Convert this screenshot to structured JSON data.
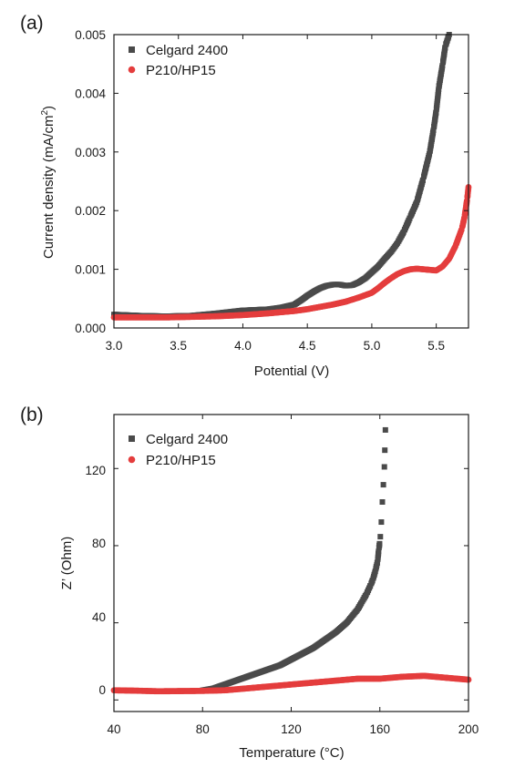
{
  "chart_data": [
    {
      "panel_label": "(a)",
      "type": "scatter",
      "xlabel": "Potential (V)",
      "ylabel": "Current density (mA/cm",
      "ylabel_sup": "2",
      "ylabel_end": ")",
      "xlim": [
        3.0,
        5.75
      ],
      "ylim": [
        0,
        0.005
      ],
      "xticks": [
        3.0,
        3.5,
        4.0,
        4.5,
        5.0,
        5.5
      ],
      "xtick_labels": [
        "3.0",
        "3.5",
        "4.0",
        "4.5",
        "5.0",
        "5.5"
      ],
      "yticks": [
        0,
        0.001,
        0.002,
        0.003,
        0.004,
        0.005
      ],
      "ytick_labels": [
        "0.000",
        "0.001",
        "0.002",
        "0.003",
        "0.004",
        "0.005"
      ],
      "grid": false,
      "legend_position": "top-left",
      "series": [
        {
          "name": "Celgard 2400",
          "color": "#4a4a4a",
          "marker": "square",
          "x": [
            3.0,
            3.2,
            3.4,
            3.6,
            3.8,
            4.0,
            4.2,
            4.3,
            4.4,
            4.45,
            4.5,
            4.55,
            4.6,
            4.65,
            4.7,
            4.75,
            4.8,
            4.85,
            4.9,
            4.95,
            5.0,
            5.05,
            5.1,
            5.15,
            5.2,
            5.25,
            5.3,
            5.35,
            5.4,
            5.45,
            5.48,
            5.5,
            5.52,
            5.55,
            5.57,
            5.6
          ],
          "y": [
            0.00023,
            0.00021,
            0.0002,
            0.00021,
            0.00025,
            0.0003,
            0.00032,
            0.00035,
            0.0004,
            0.00047,
            0.00055,
            0.00062,
            0.00068,
            0.00072,
            0.00074,
            0.00074,
            0.00072,
            0.00073,
            0.00078,
            0.00085,
            0.00095,
            0.00105,
            0.00118,
            0.0013,
            0.00145,
            0.00165,
            0.0019,
            0.00215,
            0.00255,
            0.003,
            0.0034,
            0.0037,
            0.0041,
            0.0045,
            0.0048,
            0.005
          ]
        },
        {
          "name": "P210/HP15",
          "color": "#e43d3d",
          "marker": "circle",
          "x": [
            3.0,
            3.2,
            3.4,
            3.6,
            3.8,
            4.0,
            4.2,
            4.4,
            4.5,
            4.6,
            4.7,
            4.8,
            4.9,
            5.0,
            5.05,
            5.1,
            5.15,
            5.2,
            5.25,
            5.3,
            5.35,
            5.4,
            5.45,
            5.5,
            5.55,
            5.6,
            5.65,
            5.7,
            5.72,
            5.74,
            5.75
          ],
          "y": [
            0.00018,
            0.00018,
            0.00018,
            0.00019,
            0.0002,
            0.00022,
            0.00025,
            0.00029,
            0.00032,
            0.00036,
            0.0004,
            0.00045,
            0.00052,
            0.0006,
            0.00068,
            0.00077,
            0.00085,
            0.00092,
            0.00097,
            0.001,
            0.00101,
            0.001,
            0.00099,
            0.00098,
            0.00105,
            0.00118,
            0.0014,
            0.0017,
            0.0019,
            0.0022,
            0.0024
          ]
        }
      ]
    },
    {
      "panel_label": "(b)",
      "type": "scatter",
      "xlabel": "Temperature (°C)",
      "ylabel": "Z’ (Ohm)",
      "xlim": [
        40,
        200
      ],
      "ylim": [
        -6,
        148
      ],
      "xticks": [
        40,
        80,
        120,
        160,
        200
      ],
      "xtick_labels": [
        "40",
        "80",
        "120",
        "160",
        "200"
      ],
      "yticks": [
        0,
        40,
        80,
        120
      ],
      "ytick_labels": [
        "0",
        "40",
        "80",
        "120"
      ],
      "grid": false,
      "legend_position": "top-left",
      "series": [
        {
          "name": "Celgard 2400",
          "color": "#4a4a4a",
          "marker": "square",
          "x": [
            80,
            85,
            90,
            95,
            100,
            105,
            110,
            115,
            120,
            125,
            130,
            135,
            140,
            145,
            150,
            152,
            154,
            156,
            157,
            158,
            159,
            159.5,
            160,
            160.5,
            161,
            161.5,
            162,
            162.5
          ],
          "y": [
            5,
            6,
            8,
            10,
            12,
            14,
            16,
            18,
            21,
            24,
            27,
            31,
            35,
            40,
            47,
            51,
            55,
            60,
            63,
            67,
            72,
            78,
            82,
            88,
            100,
            110,
            119,
            140
          ]
        },
        {
          "name": "P210/HP15",
          "color": "#e43d3d",
          "marker": "circle",
          "x": [
            40,
            50,
            60,
            70,
            80,
            90,
            100,
            110,
            120,
            130,
            140,
            150,
            160,
            170,
            180,
            185,
            190,
            195,
            200
          ],
          "y": [
            5,
            4.8,
            4.5,
            4.6,
            4.7,
            5,
            6,
            7,
            8,
            9,
            10,
            11,
            11,
            12,
            12.5,
            12,
            11.5,
            11,
            10.5
          ]
        }
      ]
    }
  ]
}
